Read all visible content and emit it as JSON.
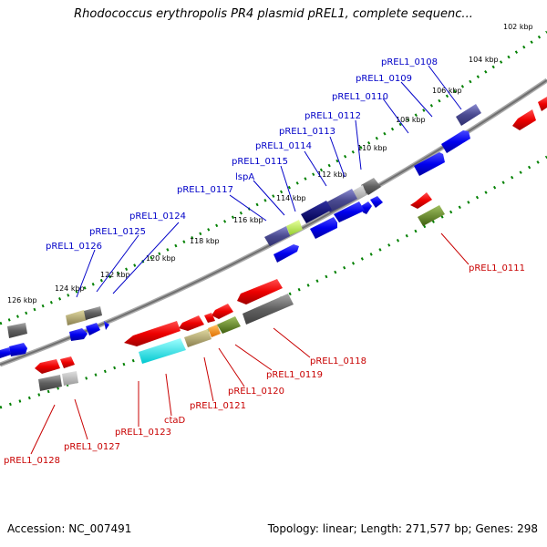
{
  "title": "Rhodococcus erythropolis PR4 plasmid pREL1, complete sequenc...",
  "footer": {
    "accession": "Accession: NC_007491",
    "summary": "Topology: linear; Length: 271,577 bp; Genes: 298"
  },
  "ruler_labels": [
    "102 kbp",
    "104 kbp",
    "106 kbp",
    "108 kbp",
    "110 kbp",
    "112 kbp",
    "114 kbp",
    "116 kbp",
    "118 kbp",
    "120 kbp",
    "122 kbp",
    "124 kbp",
    "126 kbp"
  ],
  "forward_labels": [
    "pREL1_0108",
    "pREL1_0109",
    "pREL1_0110",
    "pREL1_0112",
    "pREL1_0113",
    "pREL1_0114",
    "pREL1_0115",
    "lspA",
    "pREL1_0117",
    "pREL1_0124",
    "pREL1_0125",
    "pREL1_0126"
  ],
  "reverse_labels": [
    "pREL1_0111",
    "pREL1_0118",
    "pREL1_0119",
    "pREL1_0120",
    "pREL1_0121",
    "ctaD",
    "pREL1_0123",
    "pREL1_0127",
    "pREL1_0128"
  ],
  "colors": {
    "forward_strand": "#0000c8",
    "reverse_strand": "#c80000",
    "backbone": "#808080",
    "ruler": "#008000"
  }
}
